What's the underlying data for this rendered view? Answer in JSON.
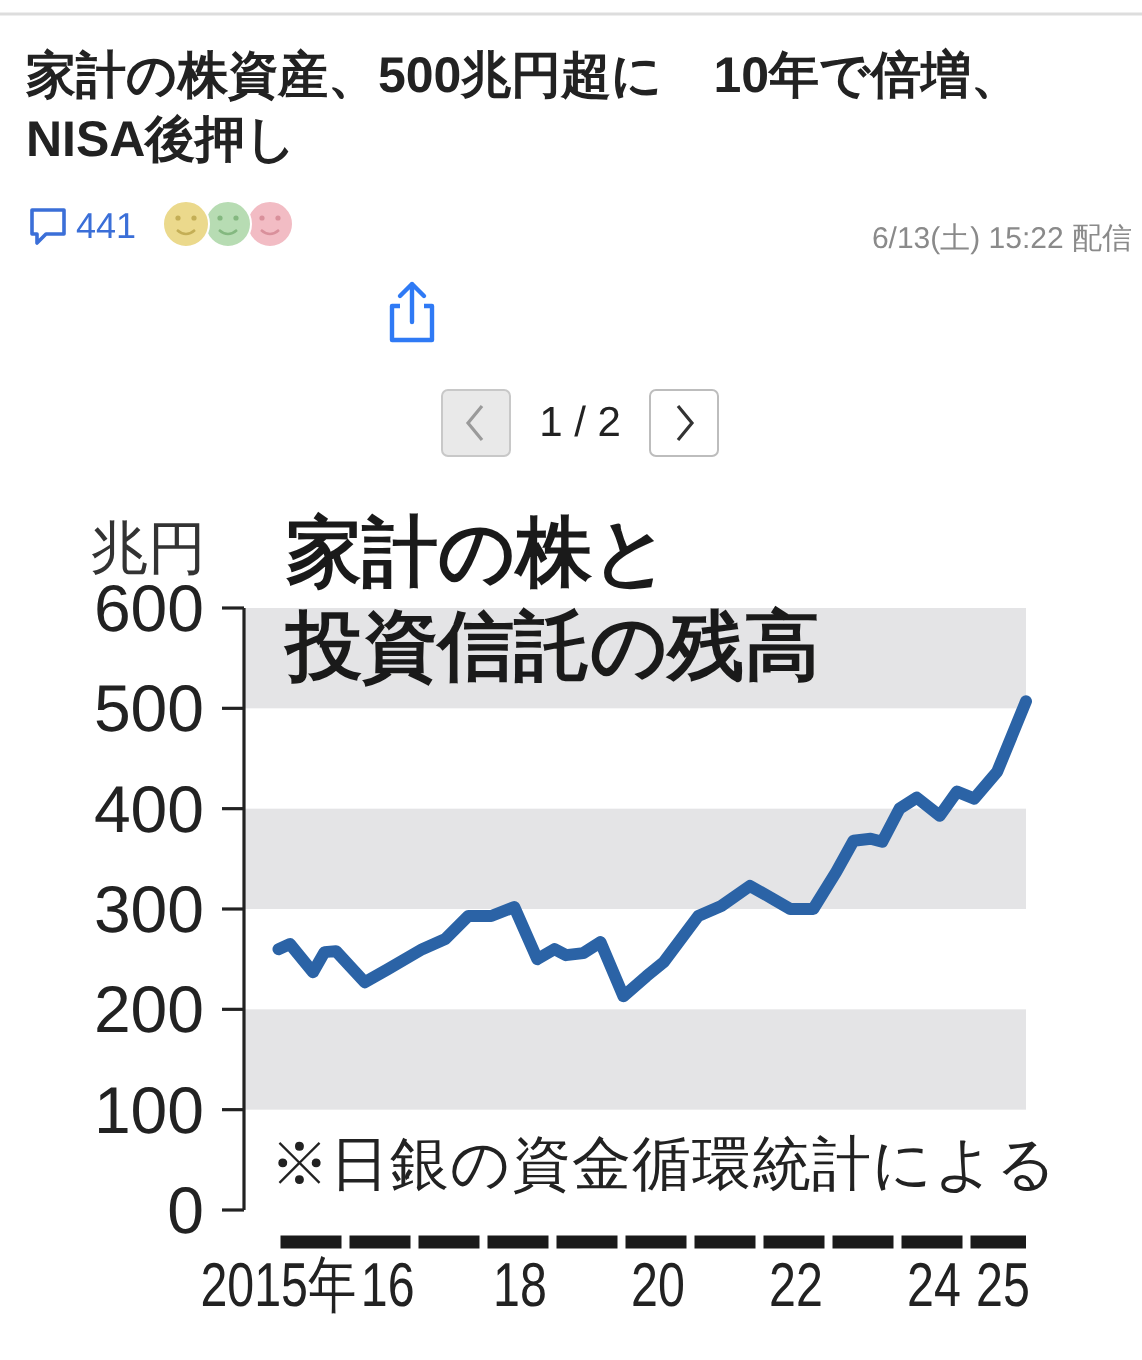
{
  "chart_data": {
    "type": "line",
    "title": "家計の株資産、500兆円超に　10年で倍増、NISA後押し",
    "subtitle": "家計の株と投資信託の残高",
    "ylabel": "兆円",
    "annotations": [
      "※日銀の資金循環統計による",
      "441",
      "6/13(土) 15:22 配信",
      "1 / 2"
    ],
    "x": [
      "2015-01",
      "2015-03",
      "2015-07",
      "2015-09",
      "2015-11",
      "2016-04",
      "2016-08",
      "2017-02",
      "2017-06",
      "2017-10",
      "2018-02",
      "2018-06",
      "2018-10",
      "2019-01",
      "2019-03",
      "2019-06",
      "2019-09",
      "2020-01",
      "2020-05",
      "2020-08",
      "2021-02",
      "2021-06",
      "2021-11",
      "2022-03",
      "2022-06",
      "2022-10",
      "2023-02",
      "2023-05",
      "2023-08",
      "2023-10",
      "2024-01",
      "2024-04",
      "2024-08",
      "2024-11",
      "2025-02",
      "2025-06",
      "2025-11"
    ],
    "series": [
      {
        "color": "#2b63a6",
        "values": [
          260,
          265,
          237,
          257,
          258,
          227,
          240,
          260,
          270,
          293,
          293,
          302,
          250,
          260,
          254,
          256,
          267,
          213,
          233,
          247,
          293,
          303,
          323,
          310,
          300,
          300,
          337,
          368,
          370,
          367,
          400,
          411,
          393,
          417,
          410,
          437,
          507
        ]
      }
    ],
    "xlim": [
      "2014-07",
      "2025-11"
    ],
    "xticks": [
      {
        "value": "2015-01",
        "label": "2015年"
      },
      {
        "value": "2016-08",
        "label": "16"
      },
      {
        "value": "2018-07",
        "label": "18"
      },
      {
        "value": "2020-07",
        "label": "20"
      },
      {
        "value": "2022-07",
        "label": "22"
      },
      {
        "value": "2024-07",
        "label": "24"
      },
      {
        "value": "2025-07",
        "label": "25"
      }
    ],
    "ylim": [
      0,
      600
    ],
    "yticks": [
      0,
      100,
      200,
      300,
      400,
      500,
      600
    ],
    "bands": [
      {
        "axis": "y",
        "from": 100,
        "to": 200,
        "color": "#e4e4e6"
      },
      {
        "axis": "y",
        "from": 300,
        "to": 400,
        "color": "#e4e4e6"
      },
      {
        "axis": "y",
        "from": 500,
        "to": 600,
        "color": "#e4e4e6"
      }
    ]
  }
}
